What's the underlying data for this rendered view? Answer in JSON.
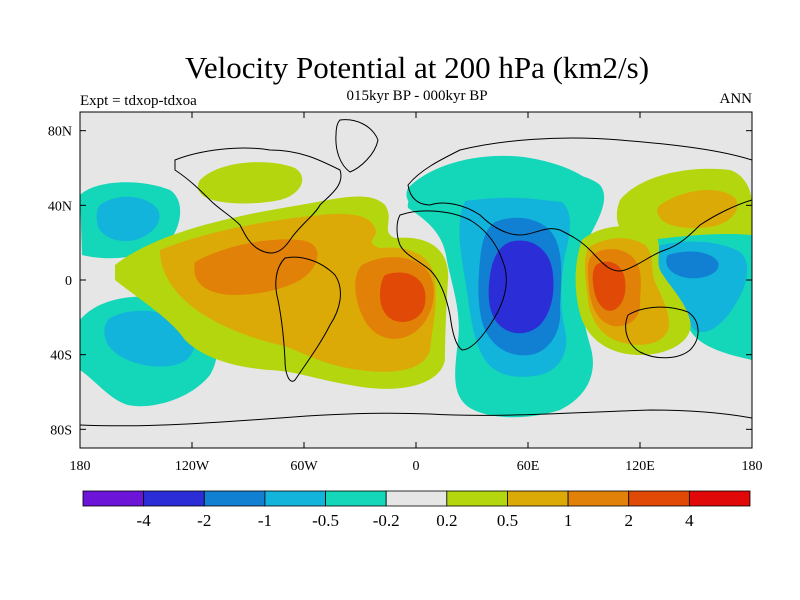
{
  "title": "Velocity Potential at 200 hPa (km2/s)",
  "subtitle": "015kyr BP - 000kyr BP",
  "left_label": "Expt = tdxop-tdxoa",
  "right_label": "ANN",
  "colors": {
    "neg4": "#6c15d8",
    "neg3": "#2b2ed6",
    "neg2": "#1180d2",
    "neg1": "#12b4dc",
    "neg05": "#14d6b8",
    "zero": "#e6e6e6",
    "pos02": "#b4d60f",
    "pos05": "#dcaa06",
    "pos1": "#e28108",
    "pos2": "#e04a06",
    "pos4": "#e00808"
  },
  "chart_data": {
    "type": "heatmap",
    "projection": "cylindrical-equidistant",
    "xlim": [
      -180,
      180
    ],
    "ylim": [
      -90,
      90
    ],
    "x_ticks": [
      {
        "value": -180,
        "label": "180"
      },
      {
        "value": -120,
        "label": "120W"
      },
      {
        "value": -60,
        "label": "60W"
      },
      {
        "value": 0,
        "label": "0"
      },
      {
        "value": 60,
        "label": "60E"
      },
      {
        "value": 120,
        "label": "120E"
      },
      {
        "value": 180,
        "label": "180"
      }
    ],
    "y_ticks": [
      {
        "value": 80,
        "label": "80N"
      },
      {
        "value": 40,
        "label": "40N"
      },
      {
        "value": 0,
        "label": "0"
      },
      {
        "value": -40,
        "label": "40S"
      },
      {
        "value": -80,
        "label": "80S"
      }
    ],
    "colorbar": {
      "colors": [
        "#6c15d8",
        "#2b2ed6",
        "#1180d2",
        "#12b4dc",
        "#14d6b8",
        "#e6e6e6",
        "#b4d60f",
        "#dcaa06",
        "#e28108",
        "#e04a06",
        "#e00808"
      ],
      "labels": [
        "-4",
        "-2",
        "-1",
        "-0.5",
        "-0.2",
        "0.2",
        "0.5",
        "1",
        "2",
        "4"
      ]
    },
    "features": [
      {
        "name": "pacific-atlantic-positive",
        "level": "0.2",
        "center": [
          -60,
          10
        ]
      },
      {
        "name": "south-atlantic-max",
        "level": "2",
        "center": [
          -5,
          -5
        ]
      },
      {
        "name": "indian-ocean-negative",
        "level": "-2",
        "center": [
          60,
          -5
        ]
      },
      {
        "name": "maritime-continent-max",
        "level": "2",
        "center": [
          102,
          -5
        ]
      },
      {
        "name": "west-pacific-negative",
        "level": "-0.5",
        "center": [
          155,
          5
        ]
      },
      {
        "name": "north-pacific-negative",
        "level": "-0.5",
        "center": [
          -155,
          35
        ]
      },
      {
        "name": "south-pacific-negative",
        "level": "-0.5",
        "center": [
          -150,
          -30
        ]
      },
      {
        "name": "north-atlantic-positive",
        "level": "0.2",
        "center": [
          -70,
          55
        ]
      },
      {
        "name": "east-asia-positive",
        "level": "0.5",
        "center": [
          145,
          40
        ]
      }
    ]
  }
}
